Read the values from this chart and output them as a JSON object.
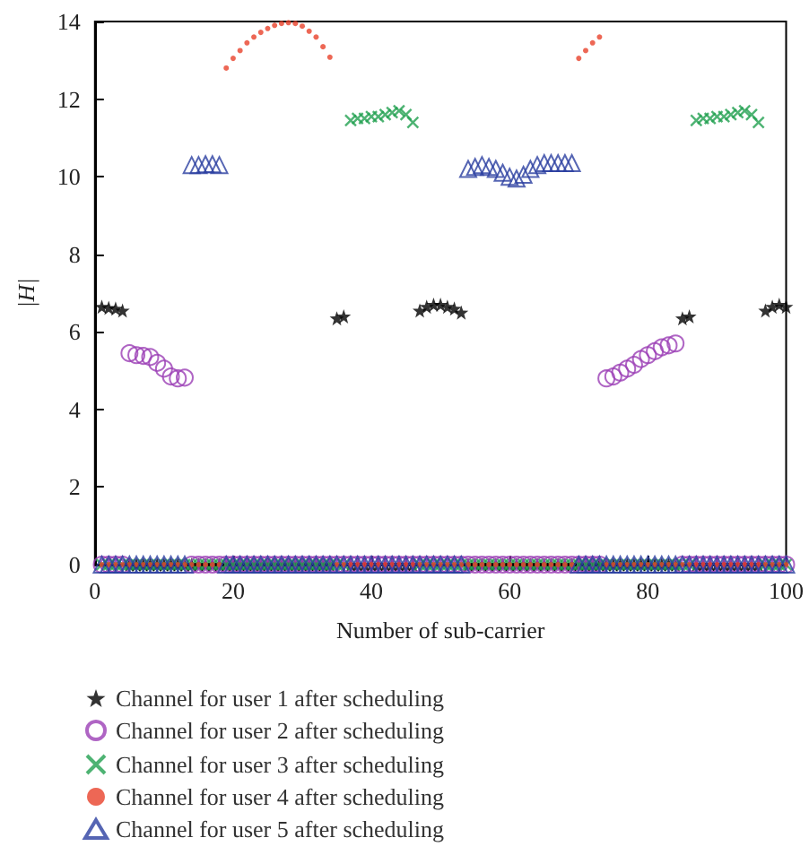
{
  "chart_data": {
    "type": "scatter",
    "xlabel": "Number of sub-carrier",
    "ylabel": "|H|",
    "x": [
      1,
      2,
      3,
      4,
      5,
      6,
      7,
      8,
      9,
      10,
      11,
      12,
      13,
      14,
      15,
      16,
      17,
      18,
      19,
      20,
      21,
      22,
      23,
      24,
      25,
      26,
      27,
      28,
      29,
      30,
      31,
      32,
      33,
      34,
      35,
      36,
      37,
      38,
      39,
      40,
      41,
      42,
      43,
      44,
      45,
      46,
      47,
      48,
      49,
      50,
      51,
      52,
      53,
      54,
      55,
      56,
      57,
      58,
      59,
      60,
      61,
      62,
      63,
      64,
      65,
      66,
      67,
      68,
      69,
      70,
      71,
      72,
      73,
      74,
      75,
      76,
      77,
      78,
      79,
      80,
      81,
      82,
      83,
      84,
      85,
      86,
      87,
      88,
      89,
      90,
      91,
      92,
      93,
      94,
      95,
      96,
      97,
      98,
      99,
      100
    ],
    "series": [
      {
        "name": "Channel for user 1 after scheduling",
        "color": "#000000",
        "marker": "star",
        "values": [
          6.65,
          6.62,
          6.6,
          6.55,
          0,
          0,
          0,
          0,
          0,
          0,
          0,
          0,
          0,
          0,
          0,
          0,
          0,
          0,
          0,
          0,
          0,
          0,
          0,
          0,
          0,
          0,
          0,
          0,
          0,
          0,
          0,
          0,
          0,
          0,
          6.35,
          6.4,
          0,
          0,
          0,
          0,
          0,
          0,
          0,
          0,
          0,
          0,
          6.55,
          6.65,
          6.7,
          6.7,
          6.65,
          6.6,
          6.5,
          0,
          0,
          0,
          0,
          0,
          0,
          0,
          0,
          0,
          0,
          0,
          0,
          0,
          0,
          0,
          0,
          0,
          0,
          0,
          0,
          0,
          0,
          0,
          0,
          0,
          0,
          0,
          0,
          0,
          0,
          0,
          6.35,
          6.4,
          0,
          0,
          0,
          0,
          0,
          0,
          0,
          0,
          0,
          0,
          6.55,
          6.65,
          6.7,
          6.65
        ]
      },
      {
        "name": "Channel for user 2 after scheduling",
        "color": "#9b3fb5",
        "marker": "circle",
        "values": [
          0,
          0,
          0,
          0,
          5.45,
          5.4,
          5.38,
          5.35,
          5.2,
          5.05,
          4.85,
          4.8,
          4.82,
          0,
          0,
          0,
          0,
          0,
          0,
          0,
          0,
          0,
          0,
          0,
          0,
          0,
          0,
          0,
          0,
          0,
          0,
          0,
          0,
          0,
          0,
          0,
          0,
          0,
          0,
          0,
          0,
          0,
          0,
          0,
          0,
          0,
          0,
          0,
          0,
          0,
          0,
          0,
          0,
          0,
          0,
          0,
          0,
          0,
          0,
          0,
          0,
          0,
          0,
          0,
          0,
          0,
          0,
          0,
          0,
          0,
          0,
          0,
          0,
          4.8,
          4.85,
          4.95,
          5.05,
          5.15,
          5.3,
          5.4,
          5.5,
          5.6,
          5.65,
          5.7,
          0,
          0,
          0,
          0,
          0,
          0,
          0,
          0,
          0,
          0,
          0,
          0,
          0,
          0,
          0,
          0
        ]
      },
      {
        "name": "Channel for user 3 after scheduling",
        "color": "#22a050",
        "marker": "cross",
        "values": [
          0,
          0,
          0,
          0,
          0,
          0,
          0,
          0,
          0,
          0,
          0,
          0,
          0,
          0,
          0,
          0,
          0,
          0,
          0,
          0,
          0,
          0,
          0,
          0,
          0,
          0,
          0,
          0,
          0,
          0,
          0,
          0,
          0,
          0,
          0,
          0,
          11.45,
          11.5,
          11.5,
          11.55,
          11.55,
          11.6,
          11.65,
          11.7,
          11.6,
          11.4,
          0,
          0,
          0,
          0,
          0,
          0,
          0,
          0,
          0,
          0,
          0,
          0,
          0,
          0,
          0,
          0,
          0,
          0,
          0,
          0,
          0,
          0,
          0,
          0,
          0,
          0,
          0,
          0,
          0,
          0,
          0,
          0,
          0,
          0,
          0,
          0,
          0,
          0,
          0,
          0,
          11.45,
          11.5,
          11.5,
          11.55,
          11.55,
          11.6,
          11.65,
          11.7,
          11.6,
          11.4,
          0,
          0,
          0,
          0
        ]
      },
      {
        "name": "Channel for user 4 after scheduling",
        "color": "#e8412a",
        "marker": "point",
        "values": [
          0,
          0,
          0,
          0,
          0,
          0,
          0,
          0,
          0,
          0,
          0,
          0,
          0,
          0,
          0,
          0,
          0,
          0,
          12.8,
          13.05,
          13.25,
          13.45,
          13.6,
          13.72,
          13.82,
          13.9,
          13.95,
          13.97,
          13.95,
          13.88,
          13.75,
          13.6,
          13.35,
          13.08,
          0,
          0,
          0,
          0,
          0,
          0,
          0,
          0,
          0,
          0,
          0,
          0,
          0,
          0,
          0,
          0,
          0,
          0,
          0,
          0,
          0,
          0,
          0,
          0,
          0,
          0,
          0,
          0,
          0,
          0,
          0,
          0,
          0,
          0,
          0,
          13.05,
          13.25,
          13.45,
          13.6,
          0,
          0,
          0,
          0,
          0,
          0,
          0,
          0,
          0,
          0,
          0,
          0,
          0,
          0,
          0,
          0,
          0,
          0,
          0,
          0,
          0,
          0,
          0,
          0,
          0,
          0,
          0
        ]
      },
      {
        "name": "Channel for user 5 after scheduling",
        "color": "#2a3fa0",
        "marker": "triangle",
        "values": [
          0,
          0,
          0,
          0,
          0,
          0,
          0,
          0,
          0,
          0,
          0,
          0,
          0,
          10.3,
          10.3,
          10.32,
          10.32,
          10.3,
          0,
          0,
          0,
          0,
          0,
          0,
          0,
          0,
          0,
          0,
          0,
          0,
          0,
          0,
          0,
          0,
          0,
          0,
          0,
          0,
          0,
          0,
          0,
          0,
          0,
          0,
          0,
          0,
          0,
          0,
          0,
          0,
          0,
          0,
          0,
          10.2,
          10.25,
          10.3,
          10.25,
          10.2,
          10.1,
          10.0,
          9.95,
          10.05,
          10.2,
          10.3,
          10.35,
          10.35,
          10.35,
          10.35,
          10.35,
          0,
          0,
          0,
          0,
          0,
          0,
          0,
          0,
          0,
          0,
          0,
          0,
          0,
          0,
          0,
          0,
          0,
          0,
          0,
          0,
          0,
          0,
          0,
          0,
          0,
          0,
          0,
          0,
          0,
          0,
          0
        ]
      }
    ],
    "xlim": [
      0,
      100
    ],
    "xticks": [
      0,
      20,
      40,
      60,
      80,
      100
    ],
    "ylim": [
      0,
      14
    ],
    "yticks": [
      0,
      2,
      4,
      6,
      8,
      10,
      12,
      14
    ],
    "grid": false,
    "legend": "bottom left"
  }
}
